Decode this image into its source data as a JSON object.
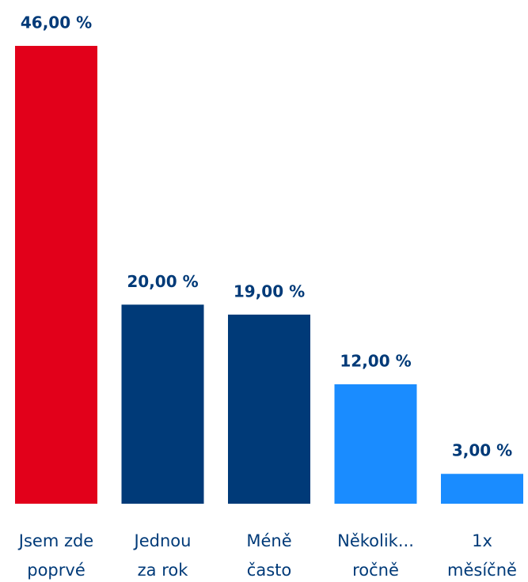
{
  "chart_data": {
    "type": "bar",
    "categories": [
      [
        "Jsem zde",
        "poprvé"
      ],
      [
        "Jednou",
        "za rok"
      ],
      [
        "Méně",
        "často"
      ],
      [
        "Několik...",
        "ročně"
      ],
      [
        "1x",
        "měsíčně"
      ]
    ],
    "values": [
      46,
      20,
      19,
      12,
      3
    ],
    "value_labels": [
      "46,00 %",
      "20,00 %",
      "19,00 %",
      "12,00 %",
      "3,00 %"
    ],
    "colors": [
      "#e2001a",
      "#003a78",
      "#003a78",
      "#1a8cff",
      "#1a8cff"
    ]
  }
}
